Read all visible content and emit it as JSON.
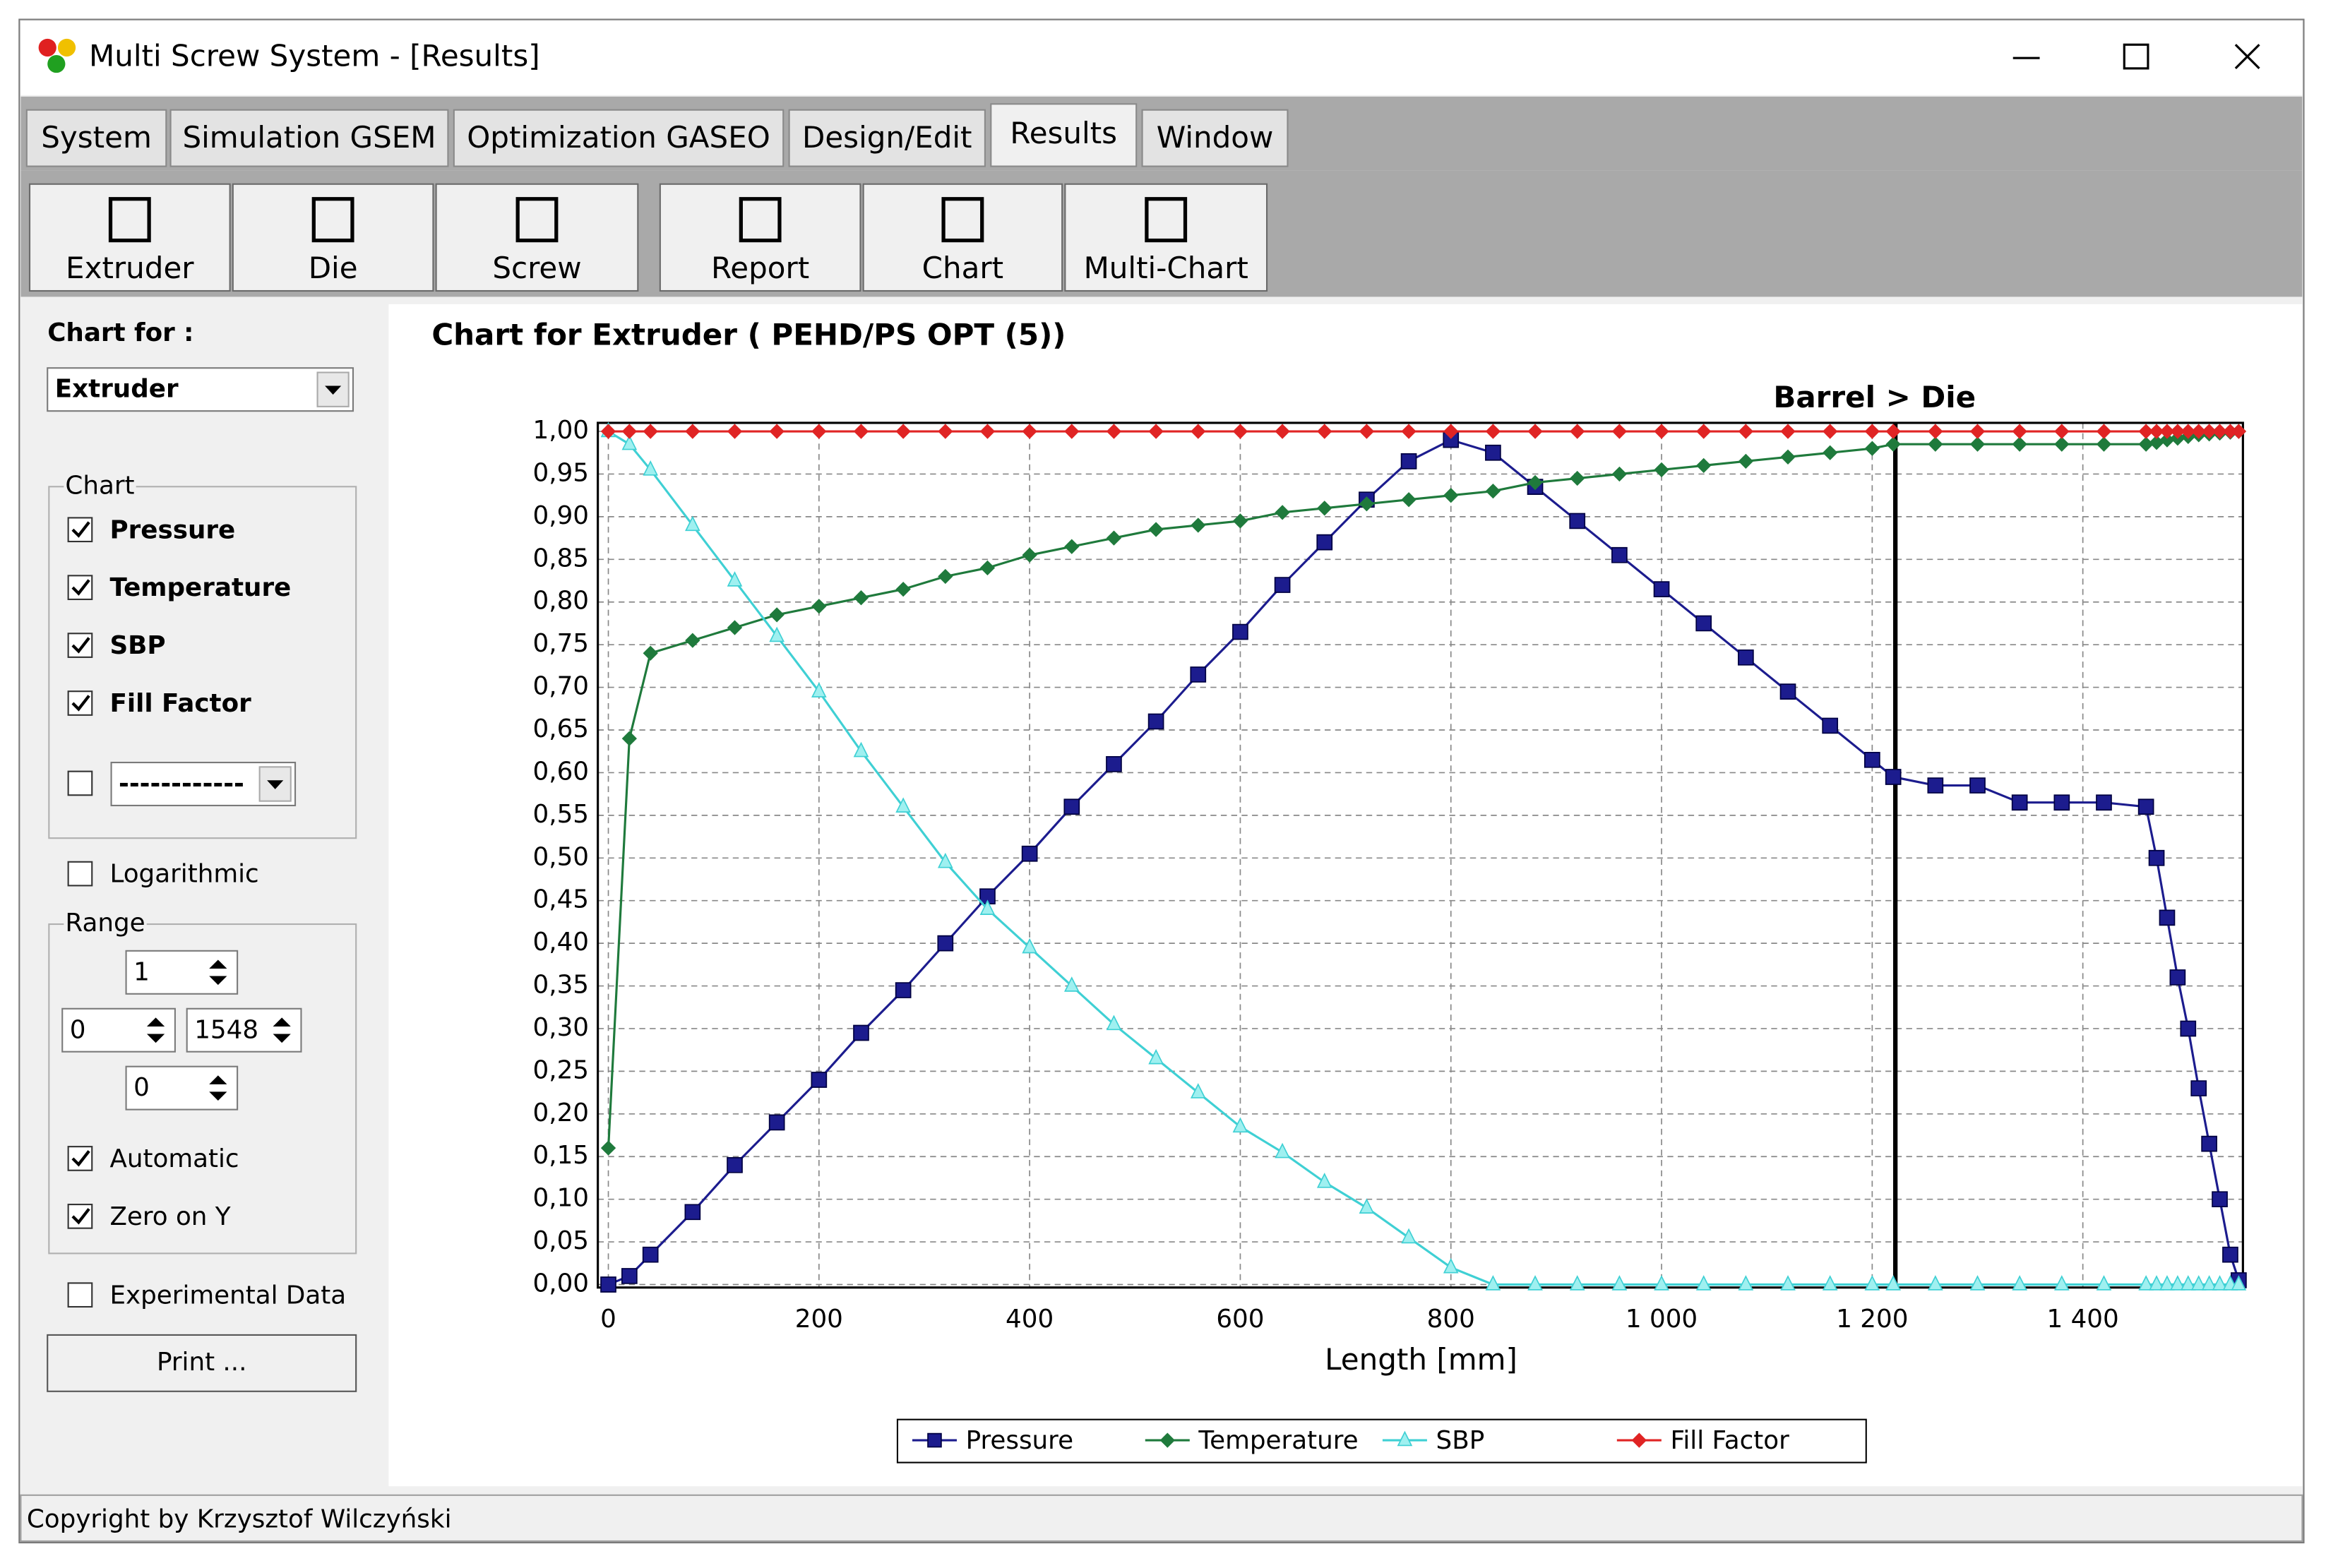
{
  "window": {
    "title": "Multi Screw System - [Results]"
  },
  "tabs": [
    "System",
    "Simulation GSEM",
    "Optimization GASEO",
    "Design/Edit",
    "Results",
    "Window"
  ],
  "toolbar": [
    "Extruder",
    "Die",
    "Screw",
    "Report",
    "Chart",
    "Multi-Chart"
  ],
  "panel": {
    "chart_for_label": "Chart for :",
    "chart_for": "Extruder",
    "chart_group": "Chart",
    "checks": [
      {
        "label": "Pressure",
        "checked": true
      },
      {
        "label": "Temperature",
        "checked": true
      },
      {
        "label": "SBP",
        "checked": true
      },
      {
        "label": "Fill Factor",
        "checked": true
      }
    ],
    "extra_dropdown": "------------",
    "logarithmic": {
      "label": "Logarithmic",
      "checked": false
    },
    "range_group": "Range",
    "range": [
      "1",
      "0",
      "1548",
      "0"
    ],
    "automatic": {
      "label": "Automatic",
      "checked": true
    },
    "zero_on_y": {
      "label": "Zero on Y",
      "checked": true
    },
    "experimental": {
      "label": "Experimental Data",
      "checked": false
    },
    "print": "Print ..."
  },
  "status": "Copyright by Krzysztof Wilczyński",
  "chart_data": {
    "type": "line",
    "title": "Chart for Extruder ( PEHD/PS OPT (5))",
    "x_label": "Length [mm]",
    "divider": {
      "label": "Barrel > Die",
      "x": 1222
    },
    "x": [
      0,
      20,
      40,
      80,
      120,
      160,
      200,
      240,
      280,
      320,
      360,
      400,
      440,
      480,
      520,
      560,
      600,
      640,
      680,
      720,
      760,
      800,
      840,
      880,
      920,
      960,
      1000,
      1040,
      1080,
      1120,
      1160,
      1200,
      1220,
      1260,
      1300,
      1340,
      1380,
      1420,
      1460,
      1470,
      1480,
      1490,
      1500,
      1510,
      1520,
      1530,
      1540,
      1548
    ],
    "series": [
      {
        "name": "Pressure",
        "color": "#1c1c8e",
        "marker": "square",
        "values": [
          0,
          0.01,
          0.035,
          0.085,
          0.14,
          0.19,
          0.24,
          0.295,
          0.345,
          0.4,
          0.455,
          0.505,
          0.56,
          0.61,
          0.66,
          0.715,
          0.765,
          0.82,
          0.87,
          0.92,
          0.965,
          0.99,
          0.975,
          0.935,
          0.895,
          0.855,
          0.815,
          0.775,
          0.735,
          0.695,
          0.655,
          0.615,
          0.595,
          0.585,
          0.585,
          0.565,
          0.565,
          0.565,
          0.56,
          0.5,
          0.43,
          0.36,
          0.3,
          0.23,
          0.165,
          0.1,
          0.035,
          0.005
        ]
      },
      {
        "name": "Temperature",
        "color": "#1f7a3c",
        "marker": "diamond",
        "values": [
          0.16,
          0.64,
          0.74,
          0.755,
          0.77,
          0.785,
          0.795,
          0.805,
          0.815,
          0.83,
          0.84,
          0.855,
          0.865,
          0.875,
          0.885,
          0.89,
          0.895,
          0.905,
          0.91,
          0.915,
          0.92,
          0.925,
          0.93,
          0.94,
          0.945,
          0.95,
          0.955,
          0.96,
          0.965,
          0.97,
          0.975,
          0.98,
          0.985,
          0.985,
          0.985,
          0.985,
          0.985,
          0.985,
          0.985,
          0.987,
          0.99,
          0.992,
          0.994,
          0.996,
          0.997,
          0.998,
          0.999,
          1
        ]
      },
      {
        "name": "SBP",
        "color": "#3fd0d4",
        "marker": "triangle",
        "values": [
          1,
          0.985,
          0.955,
          0.89,
          0.825,
          0.76,
          0.695,
          0.625,
          0.56,
          0.495,
          0.44,
          0.395,
          0.35,
          0.305,
          0.265,
          0.225,
          0.185,
          0.155,
          0.12,
          0.09,
          0.055,
          0.02,
          0,
          0,
          0,
          0,
          0,
          0,
          0,
          0,
          0,
          0,
          0,
          0,
          0,
          0,
          0,
          0,
          0,
          0,
          0,
          0,
          0,
          0,
          0,
          0,
          0,
          0
        ]
      },
      {
        "name": "Fill Factor",
        "color": "#e02424",
        "marker": "diamond",
        "values": [
          1,
          1,
          1,
          1,
          1,
          1,
          1,
          1,
          1,
          1,
          1,
          1,
          1,
          1,
          1,
          1,
          1,
          1,
          1,
          1,
          1,
          1,
          1,
          1,
          1,
          1,
          1,
          1,
          1,
          1,
          1,
          1,
          1,
          1,
          1,
          1,
          1,
          1,
          1,
          1,
          1,
          1,
          1,
          1,
          1,
          1,
          1,
          1
        ]
      }
    ],
    "xlim": [
      -10,
      1552
    ],
    "xticks": [
      0,
      200,
      400,
      600,
      800,
      {
        "value": 1000,
        "label": "1 000"
      },
      {
        "value": 1200,
        "label": "1 200"
      },
      {
        "value": 1400,
        "label": "1 400"
      }
    ],
    "ylim": [
      0,
      1.01
    ],
    "yticks": [
      {
        "value": 0,
        "label": "0,00"
      },
      {
        "value": 0.05,
        "label": "0,05"
      },
      {
        "value": 0.1,
        "label": "0,10"
      },
      {
        "value": 0.15,
        "label": "0,15"
      },
      {
        "value": 0.2,
        "label": "0,20"
      },
      {
        "value": 0.25,
        "label": "0,25"
      },
      {
        "value": 0.3,
        "label": "0,30"
      },
      {
        "value": 0.35,
        "label": "0,35"
      },
      {
        "value": 0.4,
        "label": "0,40"
      },
      {
        "value": 0.45,
        "label": "0,45"
      },
      {
        "value": 0.5,
        "label": "0,50"
      },
      {
        "value": 0.55,
        "label": "0,55"
      },
      {
        "value": 0.6,
        "label": "0,60"
      },
      {
        "value": 0.65,
        "label": "0,65"
      },
      {
        "value": 0.7,
        "label": "0,70"
      },
      {
        "value": 0.75,
        "label": "0,75"
      },
      {
        "value": 0.8,
        "label": "0,80"
      },
      {
        "value": 0.85,
        "label": "0,85"
      },
      {
        "value": 0.9,
        "label": "0,90"
      },
      {
        "value": 0.95,
        "label": "0,95"
      },
      {
        "value": 1,
        "label": "1,00"
      }
    ],
    "grid": true,
    "legend": "bottom"
  }
}
